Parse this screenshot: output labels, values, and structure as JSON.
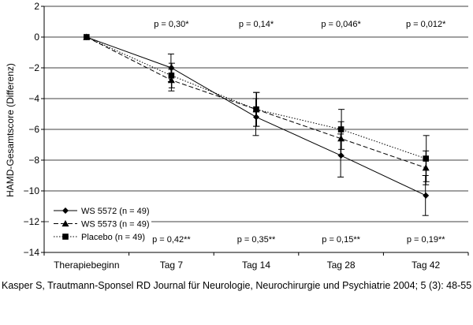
{
  "chart_data": {
    "type": "line",
    "ylabel": "HAMD-Gesamtscore (Differenz)",
    "xlabel": "",
    "categories": [
      "Therapiebeginn",
      "Tag 7",
      "Tag 14",
      "Tag 28",
      "Tag 42"
    ],
    "ylim": [
      -14,
      2
    ],
    "yticks": [
      2,
      0,
      -2,
      -4,
      -6,
      -8,
      -10,
      -12,
      -14
    ],
    "ytick_labels": [
      "2",
      "0",
      "−2",
      "−4",
      "−6",
      "−8",
      "−10",
      "−12",
      "−14"
    ],
    "grid": true,
    "legend_position": "bottom-left",
    "series": [
      {
        "name": "WS 5572 (n = 49)",
        "marker": "diamond",
        "line_style": "solid",
        "values": [
          0,
          -2.0,
          -5.2,
          -7.7,
          -10.3
        ],
        "error": [
          0,
          0.9,
          1.2,
          1.4,
          1.3
        ]
      },
      {
        "name": "WS 5573 (n = 49)",
        "marker": "triangle",
        "line_style": "dashed",
        "values": [
          0,
          -2.8,
          -4.7,
          -6.6,
          -8.5
        ],
        "error": [
          0,
          0.7,
          1.1,
          1.1,
          1.1
        ]
      },
      {
        "name": "Placebo (n = 49)",
        "marker": "square",
        "line_style": "dotted",
        "values": [
          0,
          -2.5,
          -4.7,
          -6.0,
          -7.9
        ],
        "error": [
          0,
          0.8,
          1.1,
          1.3,
          1.5
        ]
      }
    ],
    "annotations_top": [
      "",
      "p = 0,30*",
      "p = 0,14*",
      "p = 0,046*",
      "p = 0,012*"
    ],
    "annotations_bottom": [
      "",
      "p = 0,42**",
      "p = 0,35**",
      "p = 0,15**",
      "p = 0,19**"
    ]
  },
  "citation": "Kasper S, Trautmann-Sponsel RD Journal für Neurologie, Neurochirurgie und Psychiatrie 2004; 5 (3): 48-55"
}
